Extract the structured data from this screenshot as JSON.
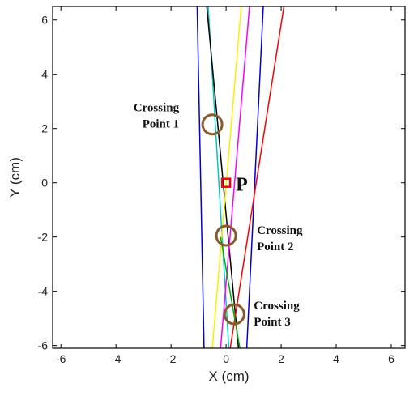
{
  "chart_data": {
    "type": "line",
    "xlabel": "X (cm)",
    "ylabel": "Y (cm)",
    "xlim": [
      -6.3,
      6.5
    ],
    "ylim": [
      -6.1,
      6.5
    ],
    "xticks": [
      -6,
      -4,
      -2,
      0,
      2,
      4,
      6
    ],
    "yticks": [
      -6,
      -4,
      -2,
      0,
      2,
      4,
      6
    ],
    "xtick_labels": [
      "-6",
      "-4",
      "-2",
      "0",
      "2",
      "4",
      "6"
    ],
    "ytick_labels": [
      "-6",
      "-4",
      "-2",
      "0",
      "2",
      "4",
      "6"
    ],
    "grid": false,
    "series": [
      {
        "color": "#0000dd",
        "x": [
          -1.05,
          -0.8
        ],
        "y": [
          6.5,
          -6.1
        ]
      },
      {
        "color": "#0000dd",
        "x": [
          1.35,
          0.75
        ],
        "y": [
          6.5,
          -6.1
        ]
      },
      {
        "color": "#00c8c8",
        "x": [
          -0.65,
          0.1
        ],
        "y": [
          6.5,
          -6.1
        ]
      },
      {
        "color": "#000000",
        "x": [
          -0.7,
          0.45
        ],
        "y": [
          6.5,
          -6.1
        ]
      },
      {
        "color": "#ffee00",
        "x": [
          0.55,
          -0.5
        ],
        "y": [
          6.5,
          -6.1
        ]
      },
      {
        "color": "#ff00ff",
        "x": [
          0.85,
          -0.2
        ],
        "y": [
          6.5,
          -6.1
        ]
      },
      {
        "color": "#ff0000",
        "x": [
          2.1,
          0.15
        ],
        "y": [
          6.5,
          -6.1
        ]
      },
      {
        "color": "#00aa00",
        "x": [
          -0.2,
          0.5
        ],
        "y": [
          -2.0,
          -6.1
        ]
      }
    ],
    "crossing_points": [
      {
        "label_line1": "Crossing",
        "label_line2": "Point 1",
        "x": -0.5,
        "y": 2.15
      },
      {
        "label_line1": "Crossing",
        "label_line2": "Point 2",
        "x": 0.0,
        "y": -1.95
      },
      {
        "label_line1": "Crossing",
        "label_line2": "Point 3",
        "x": 0.3,
        "y": -4.85
      }
    ],
    "marked_point": {
      "label": "P",
      "x": 0.0,
      "y": 0.0,
      "color": "#ff0000"
    },
    "circle_color": "#8b5a2b"
  }
}
